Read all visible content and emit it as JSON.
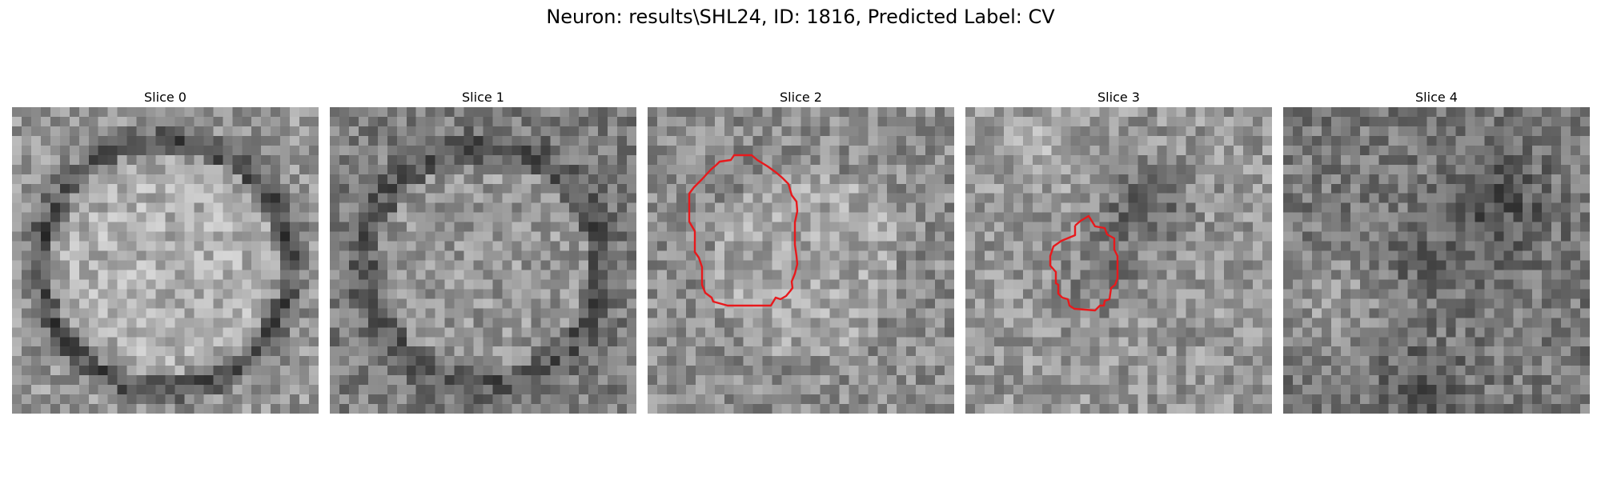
{
  "figure": {
    "title": "Neuron: results\\SHL24, ID: 1816, Predicted Label: CV"
  },
  "panels": [
    {
      "title": "Slice 0",
      "contour": false
    },
    {
      "title": "Slice 1",
      "contour": false
    },
    {
      "title": "Slice 2",
      "contour": true
    },
    {
      "title": "Slice 3",
      "contour": true
    },
    {
      "title": "Slice 4",
      "contour": false
    }
  ],
  "colors": {
    "background": "#ffffff",
    "contour": "#e8191c"
  }
}
